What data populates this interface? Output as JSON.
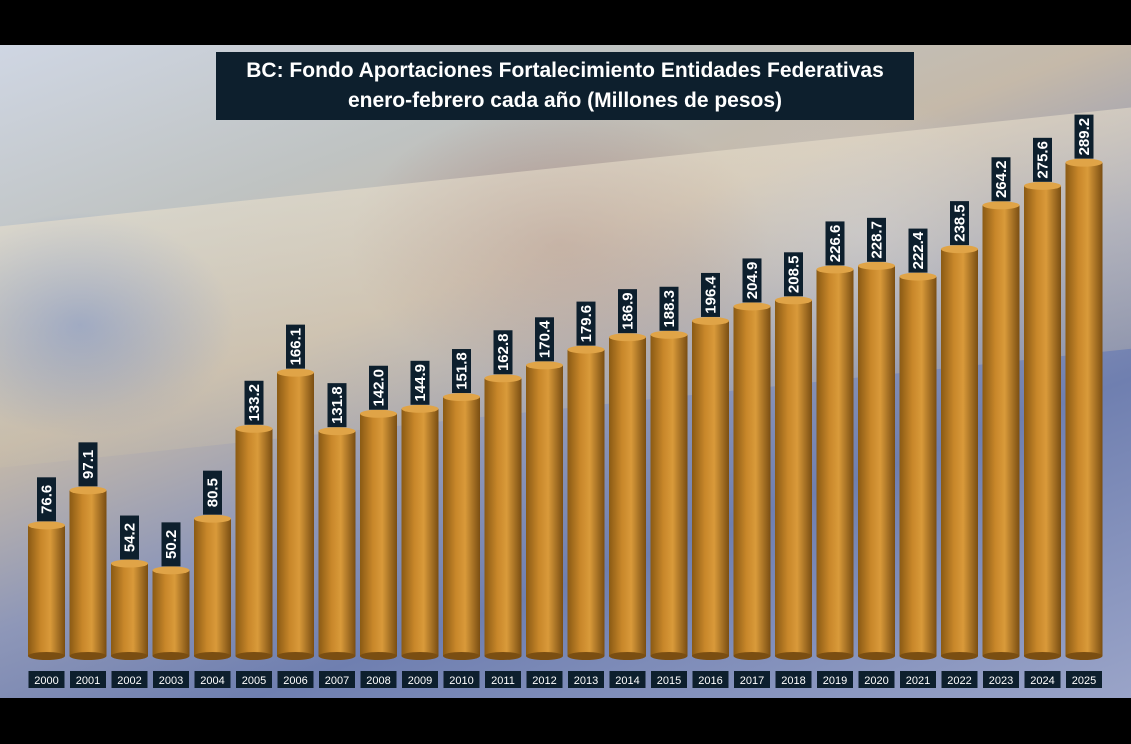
{
  "title_line1": "BC: Fondo Aportaciones Fortalecimiento Entidades Federativas",
  "title_line2": "enero-febrero cada año (Millones de pesos)",
  "colors": {
    "bar": "#c8872a",
    "bar_dark": "#7a4e12",
    "label_bg": "#0d1f2d"
  },
  "chart_data": {
    "type": "bar",
    "title": "BC: Fondo Aportaciones Fortalecimiento Entidades Federativas enero-febrero cada año (Millones de pesos)",
    "categories": [
      "2000",
      "2001",
      "2002",
      "2003",
      "2004",
      "2005",
      "2006",
      "2007",
      "2008",
      "2009",
      "2010",
      "2011",
      "2012",
      "2013",
      "2014",
      "2015",
      "2016",
      "2017",
      "2018",
      "2019",
      "2020",
      "2021",
      "2022",
      "2023",
      "2024",
      "2025"
    ],
    "values": [
      76.6,
      97.1,
      54.2,
      50.2,
      80.5,
      133.2,
      166.1,
      131.8,
      142.0,
      144.9,
      151.8,
      162.8,
      170.4,
      179.6,
      186.9,
      188.3,
      196.4,
      204.9,
      208.5,
      226.6,
      228.7,
      222.4,
      238.5,
      264.2,
      275.6,
      289.2
    ],
    "value_labels": [
      "76.6",
      "97.1",
      "54.2",
      "50.2",
      "80.5",
      "133.2",
      "166.1",
      "131.8",
      "142.0",
      "144.9",
      "151.8",
      "162.8",
      "170.4",
      "179.6",
      "186.9",
      "188.3",
      "196.4",
      "204.9",
      "208.5",
      "226.6",
      "228.7",
      "222.4",
      "238.5",
      "264.2",
      "275.6",
      "289.2"
    ],
    "xlabel": "",
    "ylabel": "",
    "grid": false,
    "legend": "none"
  }
}
